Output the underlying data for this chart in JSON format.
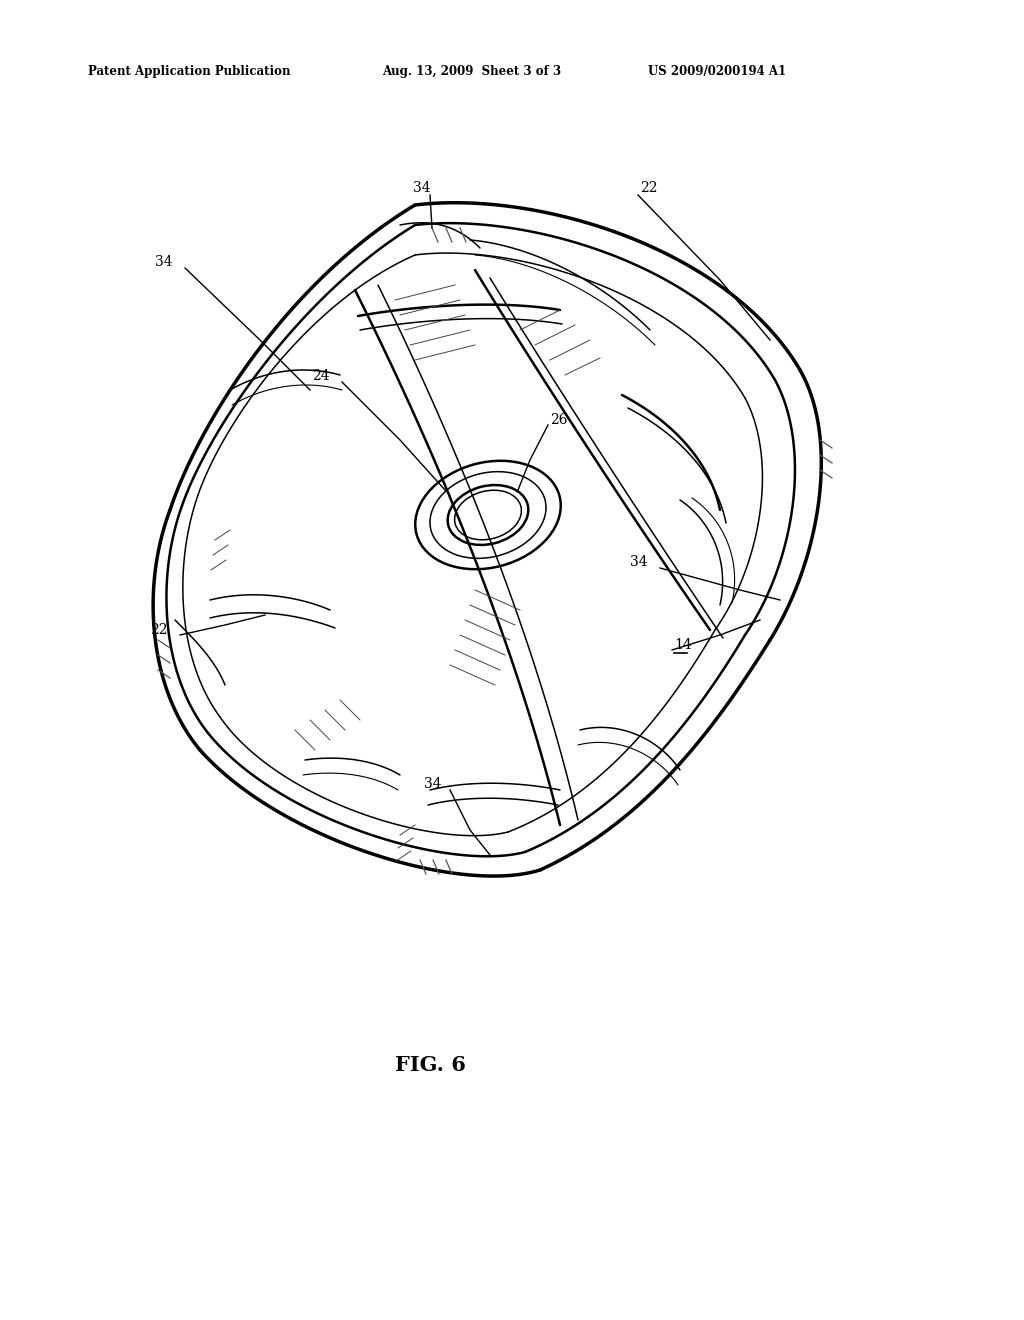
{
  "background_color": "#ffffff",
  "header_left": "Patent Application Publication",
  "header_center": "Aug. 13, 2009  Sheet 3 of 3",
  "header_right": "US 2009/0200194 A1",
  "figure_label": "FIG. 6",
  "line_color": "#000000",
  "lw_outer": 2.5,
  "lw_mid": 1.8,
  "lw_thin": 1.1,
  "lw_xtra": 0.8,
  "label_fontsize": 10,
  "header_fontsize": 8.5,
  "fig_label_fontsize": 15
}
